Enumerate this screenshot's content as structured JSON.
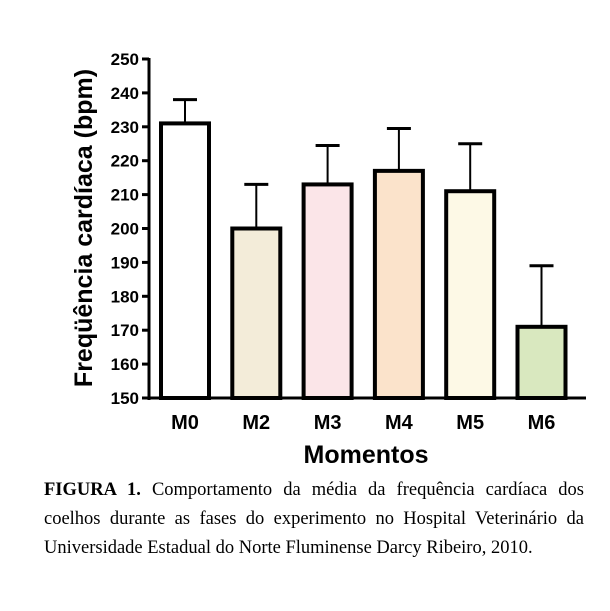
{
  "chart_data": {
    "type": "bar",
    "categories": [
      "M0",
      "M2",
      "M3",
      "M4",
      "M5",
      "M6"
    ],
    "values": [
      231,
      200,
      213,
      217,
      211,
      171
    ],
    "error_upper": [
      238,
      213,
      224.5,
      229.5,
      225,
      189
    ],
    "colors": [
      "#ffffff",
      "#f3ecd9",
      "#fbe5e8",
      "#fbe3cb",
      "#fdf9e6",
      "#d9e8bf"
    ],
    "xlabel": "Momentos",
    "ylabel": "Freqüência cardíaca (bpm)",
    "ylim": [
      150,
      250
    ],
    "yticks": [
      150,
      160,
      170,
      180,
      190,
      200,
      210,
      220,
      230,
      240,
      250
    ]
  },
  "caption": {
    "label": "FIGURA 1.",
    "text": " Comportamento da média da frequência cardíaca dos coelhos durante as fases do experimento no Hospital Veterinário da Universidade Estadual do Norte Fluminense Darcy Ribeiro, 2010."
  }
}
